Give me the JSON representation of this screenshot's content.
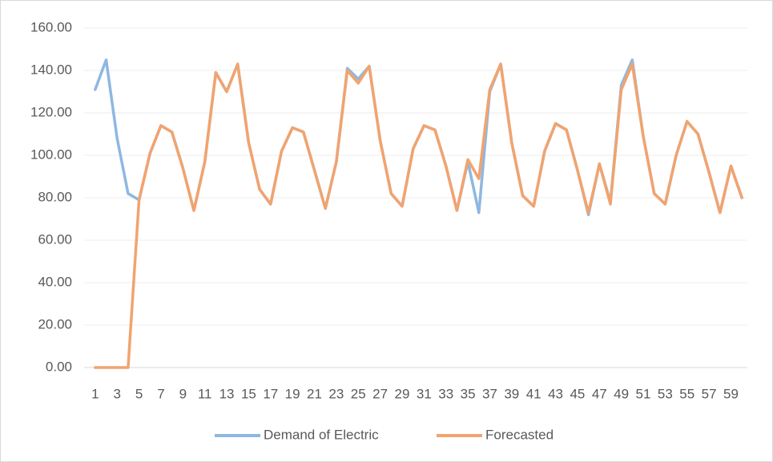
{
  "chart_data": {
    "type": "line",
    "categories": [
      "1",
      null,
      "3",
      null,
      "5",
      null,
      "7",
      null,
      "9",
      null,
      "11",
      null,
      "13",
      null,
      "15",
      null,
      "17",
      null,
      "19",
      null,
      "21",
      null,
      "23",
      null,
      "25",
      null,
      "27",
      null,
      "29",
      null,
      "31",
      null,
      "33",
      null,
      "35",
      null,
      "37",
      null,
      "39",
      null,
      "41",
      null,
      "43",
      null,
      "45",
      null,
      "47",
      null,
      "49",
      null,
      "51",
      null,
      "53",
      null,
      "55",
      null,
      "57",
      null,
      "59",
      null
    ],
    "series": [
      {
        "name": "Demand of Electric",
        "color": "#8db8e2",
        "values": [
          131,
          145,
          108,
          82,
          79,
          101,
          114,
          111,
          94,
          74,
          97,
          139,
          130,
          143,
          106,
          84,
          77,
          102,
          113,
          111,
          93,
          75,
          97,
          141,
          136,
          142,
          107,
          82,
          76,
          103,
          114,
          112,
          95,
          74,
          97,
          73,
          130,
          143,
          106,
          81,
          76,
          102,
          115,
          112,
          93,
          72,
          96,
          78,
          133,
          145,
          109,
          82,
          77,
          100,
          116,
          110,
          92,
          73,
          95,
          80
        ]
      },
      {
        "name": "Forecasted",
        "color": "#f2a36e",
        "values": [
          0,
          0,
          0,
          0,
          79,
          101,
          114,
          111,
          94,
          74,
          97,
          139,
          130,
          143,
          106,
          84,
          77,
          102,
          113,
          111,
          93,
          75,
          97,
          140,
          134,
          142,
          107,
          82,
          76,
          103,
          114,
          112,
          95,
          74,
          98,
          89,
          131,
          143,
          106,
          81,
          76,
          102,
          115,
          112,
          93,
          73,
          96,
          77,
          131,
          143,
          109,
          82,
          77,
          100,
          116,
          110,
          92,
          73,
          95,
          80
        ]
      }
    ],
    "ylim": [
      0,
      160
    ],
    "yticks": [
      {
        "value": 0,
        "label": "0.00"
      },
      {
        "value": 20,
        "label": "20.00"
      },
      {
        "value": 40,
        "label": "40.00"
      },
      {
        "value": 60,
        "label": "60.00"
      },
      {
        "value": 80,
        "label": "80.00"
      },
      {
        "value": 100,
        "label": "100.00"
      },
      {
        "value": 120,
        "label": "120.00"
      },
      {
        "value": 140,
        "label": "140.00"
      },
      {
        "value": 160,
        "label": "160.00"
      }
    ],
    "grid": true
  }
}
